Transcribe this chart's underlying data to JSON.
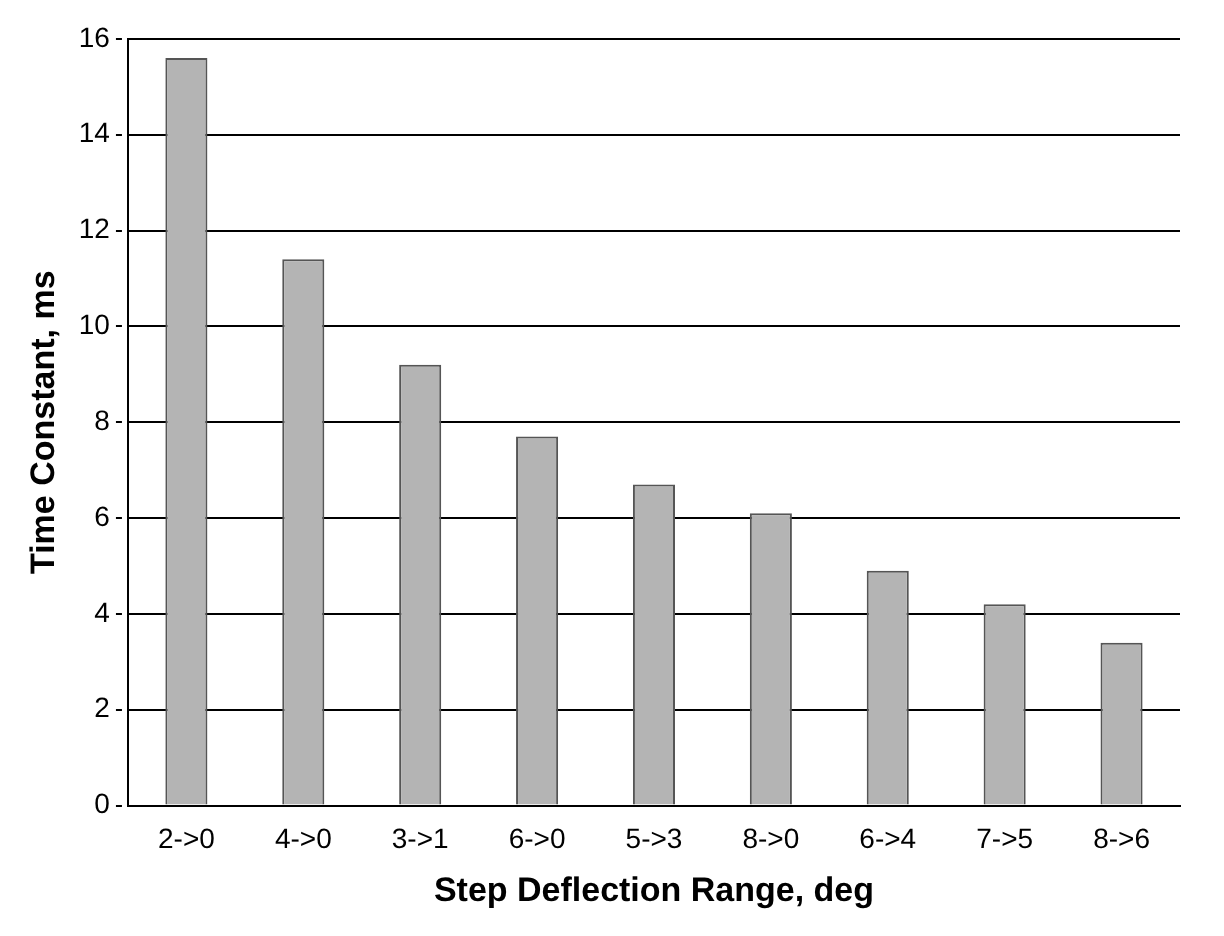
{
  "chart_data": {
    "type": "bar",
    "xlabel": "Step Deflection Range, deg",
    "ylabel": "Time Constant, ms",
    "categories": [
      "2->0",
      "4->0",
      "3->1",
      "6->0",
      "5->3",
      "8->0",
      "6->4",
      "7->5",
      "8->6"
    ],
    "values": [
      15.6,
      11.4,
      9.2,
      7.7,
      6.7,
      6.1,
      4.9,
      4.2,
      3.4
    ],
    "color": "#b4b4b4",
    "ylim": [
      0,
      16
    ],
    "yticks": [
      0,
      2,
      4,
      6,
      8,
      10,
      12,
      14,
      16
    ],
    "grid": "y",
    "line_style": "dashed",
    "legend": false
  }
}
